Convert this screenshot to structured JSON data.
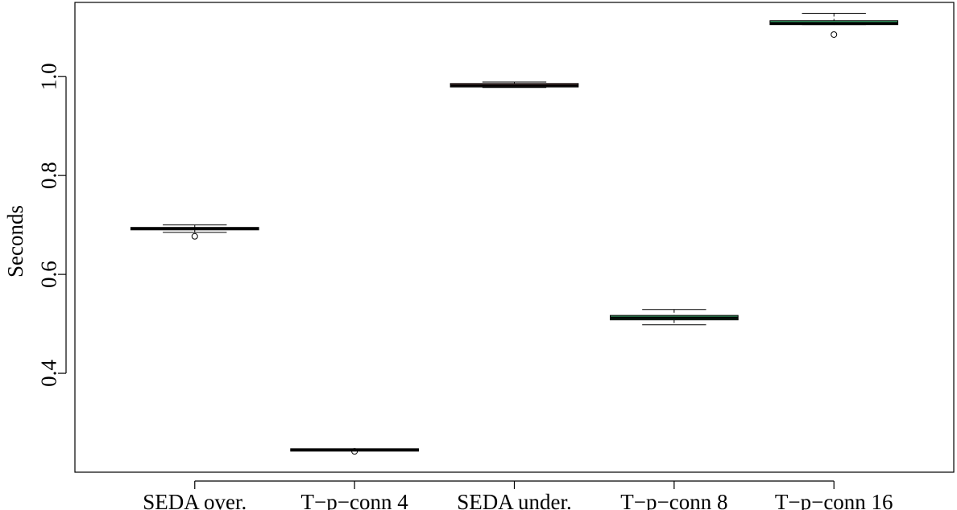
{
  "chart_data": {
    "type": "boxplot",
    "title": "",
    "xlabel": "",
    "ylabel": "Seconds",
    "ylim": [
      0.2,
      1.15
    ],
    "y_ticks": [
      0.4,
      0.6,
      0.8,
      1.0
    ],
    "y_tick_labels": [
      "0.4",
      "0.6",
      "0.8",
      "1.0"
    ],
    "grid": false,
    "categories": [
      "SEDA over.",
      "T−p−conn 4",
      "SEDA under.",
      "T−p−conn 8",
      "T−p−conn 16"
    ],
    "boxes": [
      {
        "category": "SEDA over.",
        "whisker_low": 0.685,
        "q1": 0.69,
        "median": 0.692,
        "q3": 0.695,
        "whisker_high": 0.7,
        "outliers": [
          0.677
        ],
        "color": "#8B1A1A"
      },
      {
        "category": "T−p−conn 4",
        "whisker_low": 0.245,
        "q1": 0.245,
        "median": 0.245,
        "q3": 0.245,
        "whisker_high": 0.245,
        "outliers": [
          0.242
        ],
        "color": "#4B2E83"
      },
      {
        "category": "SEDA under.",
        "whisker_low": 0.978,
        "q1": 0.979,
        "median": 0.982,
        "q3": 0.986,
        "whisker_high": 0.989,
        "outliers": [],
        "color": "#C08080"
      },
      {
        "category": "T−p−conn 8",
        "whisker_low": 0.498,
        "q1": 0.508,
        "median": 0.512,
        "q3": 0.517,
        "whisker_high": 0.529,
        "outliers": [],
        "color": "#2E8B57"
      },
      {
        "category": "T−p−conn 16",
        "whisker_low": 1.105,
        "q1": 1.105,
        "median": 1.108,
        "q3": 1.113,
        "whisker_high": 1.128,
        "outliers": [
          1.085
        ],
        "color": "#3CB371"
      }
    ]
  }
}
